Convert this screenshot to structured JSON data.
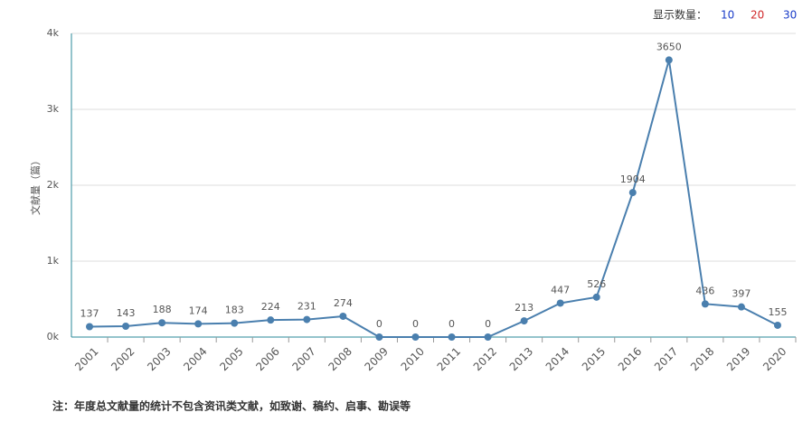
{
  "chart_data": {
    "type": "line",
    "y_label": "文献量（篇）",
    "categories": [
      "2001",
      "2002",
      "2003",
      "2004",
      "2005",
      "2006",
      "2007",
      "2008",
      "2009",
      "2010",
      "2011",
      "2012",
      "2013",
      "2014",
      "2015",
      "2016",
      "2017",
      "2018",
      "2019",
      "2020"
    ],
    "values": [
      137,
      143,
      188,
      174,
      183,
      224,
      231,
      274,
      0,
      0,
      0,
      0,
      213,
      447,
      526,
      1904,
      3650,
      436,
      397,
      155
    ],
    "color": "#4a7fae",
    "ylim": [
      0,
      4000
    ],
    "yticks": [
      {
        "value": 0,
        "label": "0k"
      },
      {
        "value": 1000,
        "label": "1k"
      },
      {
        "value": 2000,
        "label": "2k"
      },
      {
        "value": 3000,
        "label": "3k"
      },
      {
        "value": 4000,
        "label": "4k"
      }
    ],
    "grid": true
  },
  "controls": {
    "label": "显示数量：",
    "options": [
      10,
      20,
      30
    ]
  },
  "note": "注：年度总文献量的统计不包含资讯类文献，如致谢、稿约、启事、勘误等"
}
